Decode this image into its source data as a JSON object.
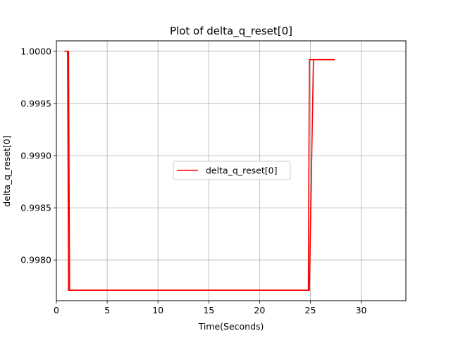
{
  "chart_data": {
    "type": "line",
    "title": "Plot of delta_q_reset[0]",
    "xlabel": "Time(Seconds)",
    "ylabel": "delta_q_reset[0]",
    "xlim": [
      0,
      34.4
    ],
    "ylim": [
      0.99761,
      1.0001
    ],
    "xticks": [
      0,
      5,
      10,
      15,
      20,
      25,
      30
    ],
    "xtick_labels": [
      "0",
      "5",
      "10",
      "15",
      "20",
      "25",
      "30"
    ],
    "yticks": [
      0.998,
      0.9985,
      0.999,
      0.9995,
      1.0
    ],
    "ytick_labels": [
      "0.9980",
      "0.9985",
      "0.9990",
      "0.9995",
      "1.0000"
    ],
    "grid": true,
    "legend_position": "center",
    "series": [
      {
        "name": "delta_q_reset[0]",
        "color": "#ff0000",
        "x": [
          0.8,
          1.1,
          1.2,
          24.8,
          24.9,
          25.3,
          27.4
        ],
        "y": [
          1.0,
          1.0,
          0.99771,
          0.99771,
          0.99992,
          0.99992,
          0.99992
        ]
      },
      {
        "name": "",
        "color": "#ff0000",
        "x": [
          0.8,
          1.2,
          1.3,
          24.9,
          25.3
        ],
        "y": [
          1.0,
          1.0,
          0.99771,
          0.99771,
          0.99992
        ]
      }
    ]
  }
}
